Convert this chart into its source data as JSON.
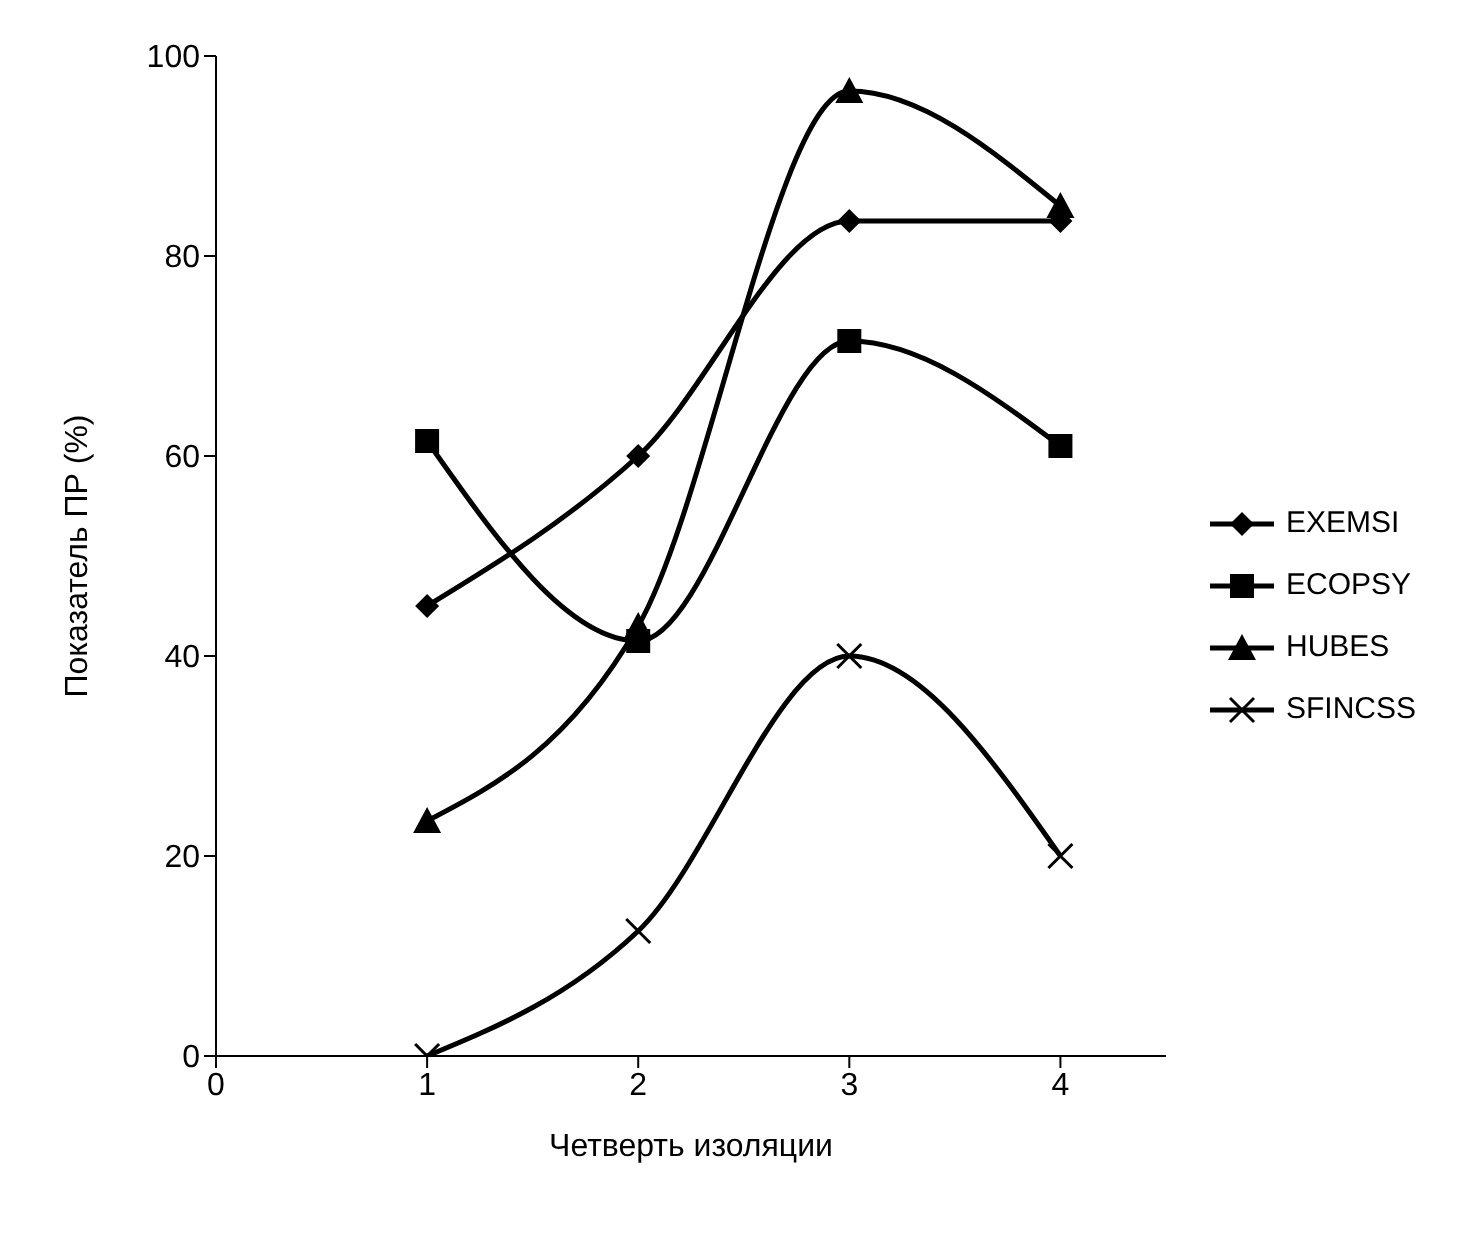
{
  "chart_data": {
    "type": "line",
    "xlabel": "Четверть изоляции",
    "ylabel": "Показатель ПР (%)",
    "x": [
      1,
      2,
      3,
      4
    ],
    "xlim": [
      0,
      4.5
    ],
    "xticks": [
      0,
      1,
      2,
      3,
      4
    ],
    "ylim": [
      0,
      100
    ],
    "yticks": [
      0,
      20,
      40,
      60,
      80,
      100
    ],
    "grid": false,
    "legend": "right",
    "line_style": "solid",
    "series": [
      {
        "name": "EXEMSI",
        "color": "#000000",
        "marker": "diamond",
        "values": [
          45,
          60,
          83.5,
          83.5
        ]
      },
      {
        "name": "ECOPSY",
        "color": "#000000",
        "marker": "square",
        "values": [
          61.5,
          41.5,
          71.5,
          61
        ]
      },
      {
        "name": "HUBES",
        "color": "#000000",
        "marker": "triangle",
        "values": [
          23.5,
          43,
          96.5,
          85
        ]
      },
      {
        "name": "SFINCSS",
        "color": "#000000",
        "marker": "cross",
        "values": [
          0,
          12.5,
          40,
          20
        ]
      }
    ]
  }
}
